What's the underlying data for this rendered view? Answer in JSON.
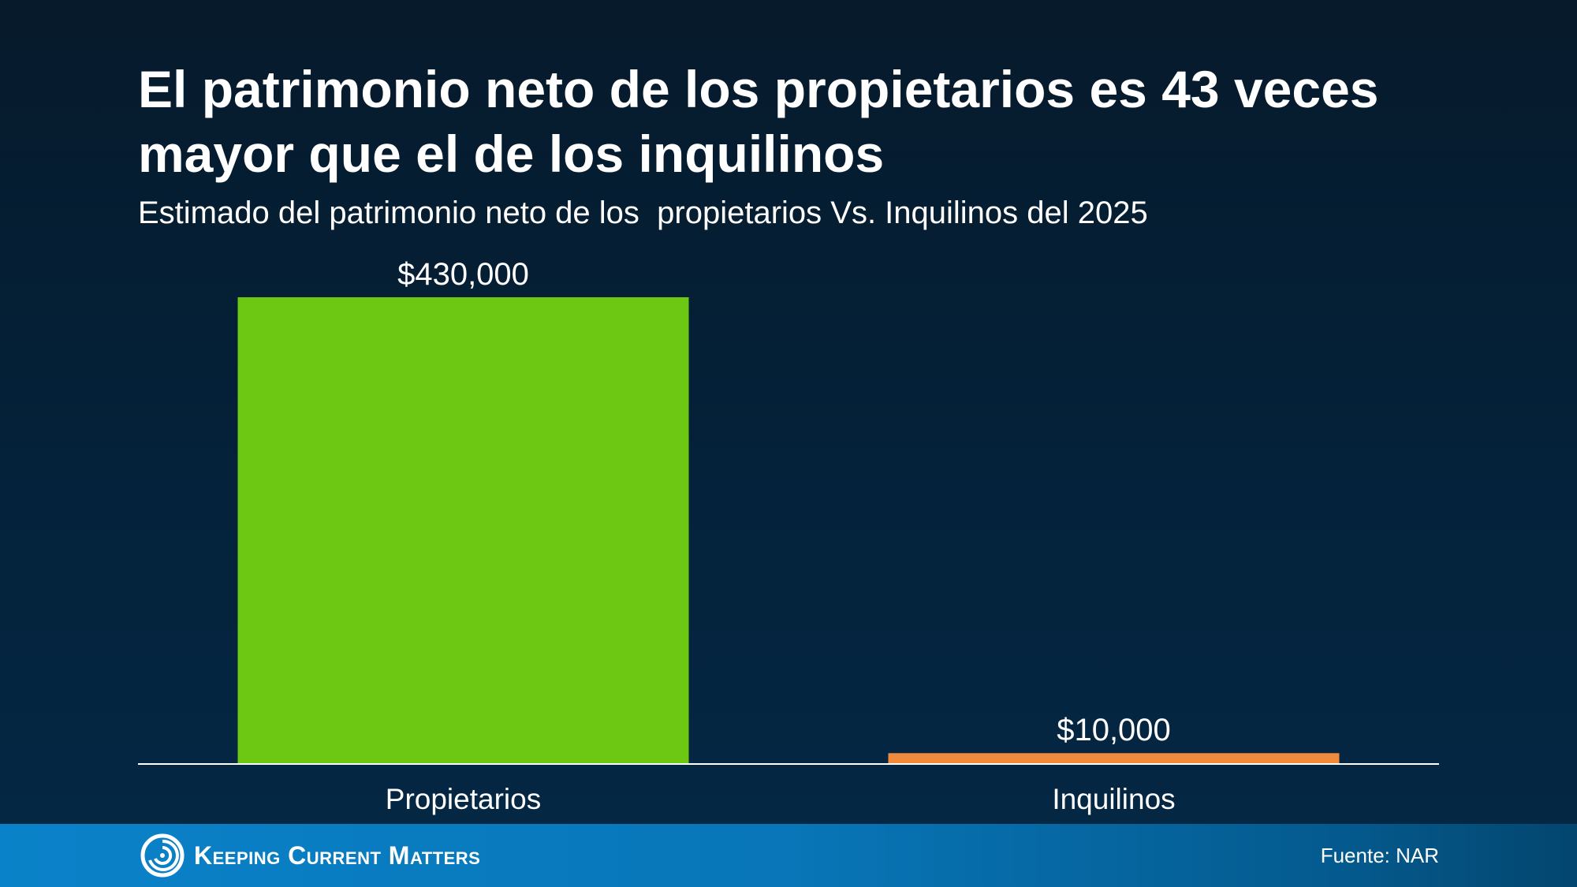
{
  "title": "El patrimonio neto de los propietarios es 43 veces mayor que el de los inquilinos",
  "subtitle": "Estimado del patrimonio neto de los  propietarios Vs. Inquilinos del 2025",
  "chart_data": {
    "type": "bar",
    "title": "El patrimonio neto de los propietarios es 43 veces mayor que el de los inquilinos",
    "subtitle": "Estimado del patrimonio neto de los  propietarios Vs. Inquilinos del 2025",
    "categories": [
      "Propietarios",
      "Inquilinos"
    ],
    "values": [
      430000,
      10000
    ],
    "value_labels": [
      "$430,000",
      "$10,000"
    ],
    "bar_colors": [
      "#6cc813",
      "#f08a3c"
    ],
    "ylim": [
      0,
      430000
    ],
    "grid": false,
    "legend": "none",
    "xlabel": "",
    "ylabel": ""
  },
  "footer": {
    "logo_text": "Keeping Current Matters",
    "logo_icon": "swirl-icon",
    "source": "Fuente: NAR"
  },
  "colors": {
    "background": "#04223b",
    "footer": "#0a82c9",
    "axis": "#ffffff",
    "text": "#ffffff"
  }
}
